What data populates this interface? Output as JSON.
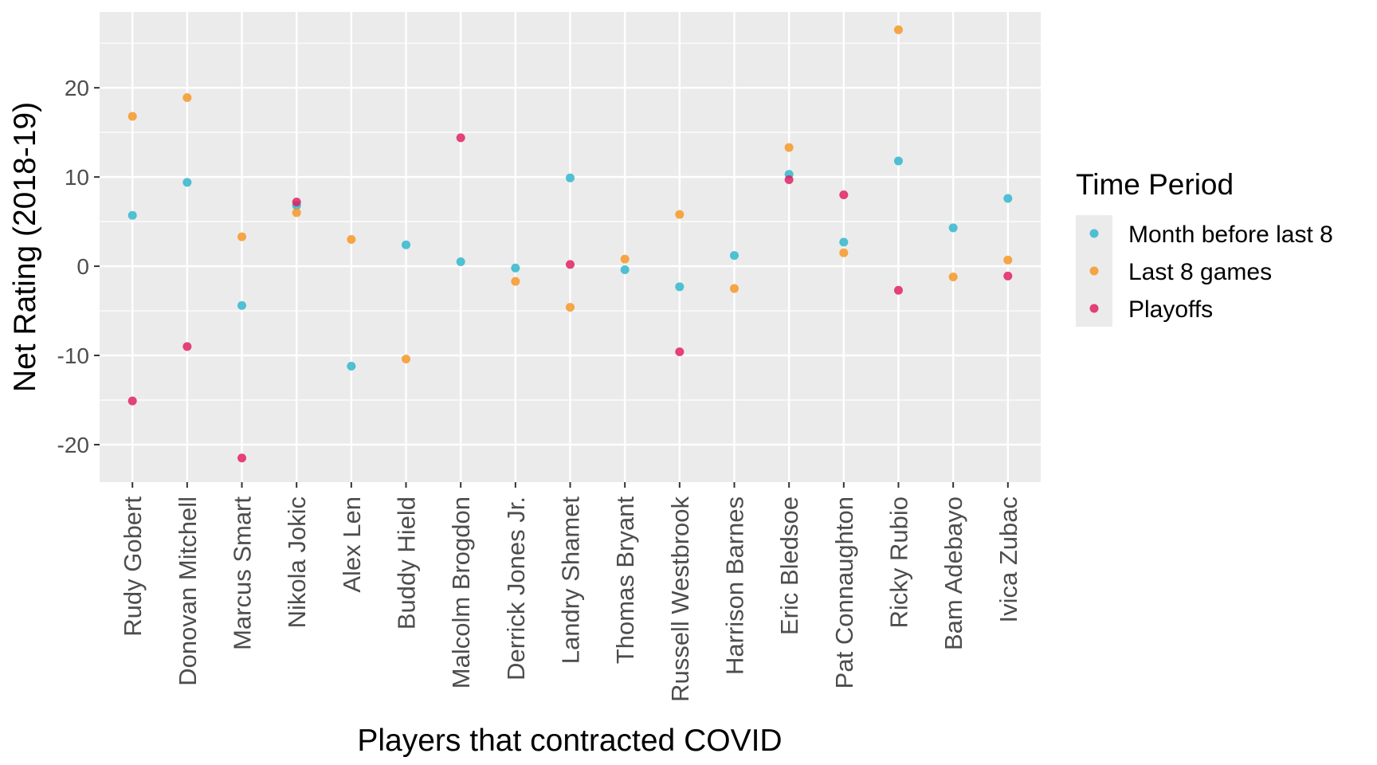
{
  "chart_data": {
    "type": "scatter",
    "title": "",
    "xlabel": "Players that contracted COVID",
    "ylabel": "Net Rating (2018-19)",
    "categories": [
      "Rudy Gobert",
      "Donovan Mitchell",
      "Marcus Smart",
      "Nikola Jokic",
      "Alex Len",
      "Buddy Hield",
      "Malcolm Brogdon",
      "Derrick Jones Jr.",
      "Landry Shamet",
      "Thomas Bryant",
      "Russell Westbrook",
      "Harrison Barnes",
      "Eric Bledsoe",
      "Pat Connaughton",
      "Ricky Rubio",
      "Bam Adebayo",
      "Ivica Zubac"
    ],
    "y_ticks": [
      -20,
      -10,
      0,
      10,
      20
    ],
    "y_tick_labels": [
      "-20",
      "-10",
      "0",
      "10",
      "20"
    ],
    "ylim": [
      -24.2,
      28.5
    ],
    "grid": true,
    "legend": {
      "title": "Time Period",
      "position": "right"
    },
    "series": [
      {
        "name": "Month before last 8",
        "color": "#2bb5cc",
        "values": [
          5.7,
          9.4,
          -4.4,
          6.8,
          -11.2,
          2.4,
          0.5,
          -0.2,
          9.9,
          -0.4,
          -2.3,
          1.2,
          10.3,
          2.7,
          11.8,
          4.3,
          7.6
        ]
      },
      {
        "name": "Last 8 games",
        "color": "#f7941d",
        "values": [
          16.8,
          18.9,
          3.3,
          6.0,
          3.0,
          -10.4,
          null,
          -1.7,
          -4.6,
          0.8,
          5.8,
          -2.5,
          13.3,
          1.5,
          26.5,
          -1.2,
          0.7
        ]
      },
      {
        "name": "Playoffs",
        "color": "#e0195e",
        "values": [
          -15.1,
          -9.0,
          -21.5,
          7.2,
          null,
          null,
          14.4,
          null,
          0.2,
          null,
          -9.6,
          null,
          9.7,
          8.0,
          -2.7,
          null,
          -1.1
        ]
      }
    ]
  }
}
